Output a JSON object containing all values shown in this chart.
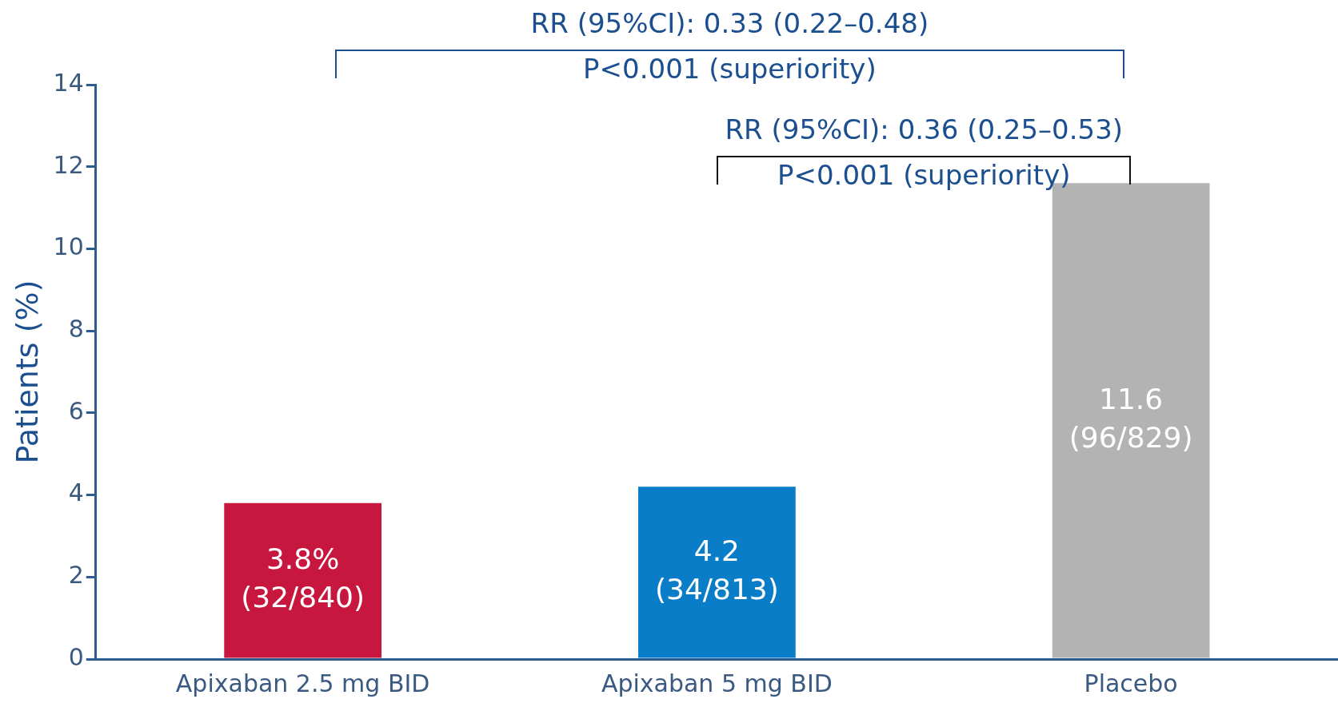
{
  "chart_data": {
    "type": "bar",
    "ylabel": "Patients (%)",
    "categories": [
      "Apixaban 2.5 mg BID",
      "Apixaban 5 mg BID",
      "Placebo"
    ],
    "values": [
      3.8,
      4.2,
      11.6
    ],
    "colors": [
      "#c8173f",
      "#0a7dc8",
      "#b3b3b3"
    ],
    "value_labels": [
      "3.8%\n(32/840)",
      "4.2\n(34/813)",
      "11.6\n(96/829)"
    ],
    "ylim": [
      0,
      14
    ],
    "yticks": [
      0,
      2,
      4,
      6,
      8,
      10,
      12,
      14
    ],
    "grid": false,
    "legend": false,
    "annotations": [
      "RR (95%CI): 0.33 (0.22–0.48)",
      "P<0.001 (superiority)",
      "RR (95%CI): 0.36 (0.25–0.53)",
      "P<0.001 (superiority)"
    ]
  }
}
